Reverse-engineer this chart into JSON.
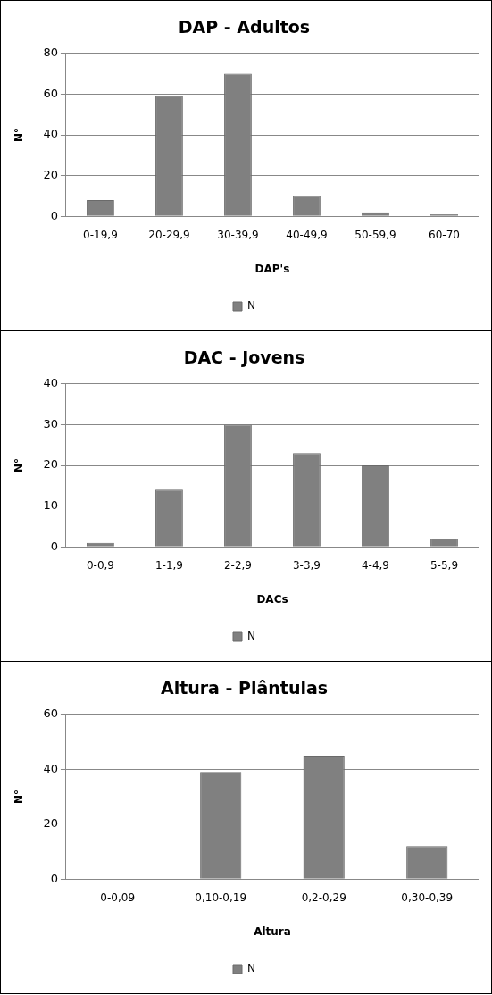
{
  "chart_data": [
    {
      "type": "bar",
      "title": "DAP - Adultos",
      "xlabel": "DAP's",
      "ylabel": "N°",
      "categories": [
        "0-19,9",
        "20-29,9",
        "30-39,9",
        "40-49,9",
        "50-59,9",
        "60-70"
      ],
      "series": [
        {
          "name": "N",
          "color": "#808080",
          "values": [
            8,
            59,
            70,
            10,
            2,
            1
          ]
        }
      ],
      "ylim": [
        0,
        80
      ],
      "yticks": [
        0,
        20,
        40,
        60,
        80
      ],
      "grid": "y",
      "legend": "bottom"
    },
    {
      "type": "bar",
      "title": "DAC - Jovens",
      "xlabel": "DACs",
      "ylabel": "N°",
      "categories": [
        "0-0,9",
        "1-1,9",
        "2-2,9",
        "3-3,9",
        "4-4,9",
        "5-5,9"
      ],
      "series": [
        {
          "name": "N",
          "color": "#808080",
          "values": [
            1,
            14,
            30,
            23,
            20,
            2
          ]
        }
      ],
      "ylim": [
        0,
        40
      ],
      "yticks": [
        0,
        10,
        20,
        30,
        40
      ],
      "grid": "y",
      "legend": "bottom"
    },
    {
      "type": "bar",
      "title": "Altura - Plântulas",
      "xlabel": "Altura",
      "ylabel": "N°",
      "categories": [
        "0-0,09",
        "0,10-0,19",
        "0,2-0,29",
        "0,30-0,39"
      ],
      "series": [
        {
          "name": "N",
          "color": "#808080",
          "values": [
            0,
            39,
            45,
            12
          ]
        }
      ],
      "ylim": [
        0,
        60
      ],
      "yticks": [
        0,
        20,
        40,
        60
      ],
      "grid": "y",
      "legend": "bottom"
    }
  ]
}
